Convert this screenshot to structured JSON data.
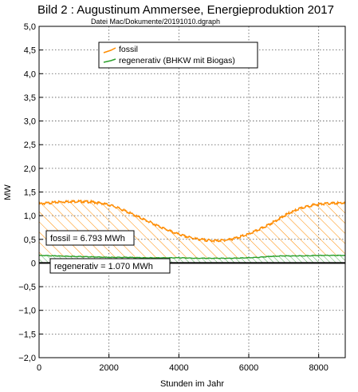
{
  "chart_data": {
    "type": "area",
    "title": "Bild 2 : Augustinum Ammersee, Energieproduktion 2017",
    "subtitle": "Datei Mac/Dokumente/20191010.dgraph",
    "xlabel": "Stunden im Jahr",
    "ylabel": "MW",
    "xlim": [
      0,
      8760
    ],
    "ylim": [
      -2.0,
      5.0
    ],
    "x_ticks": [
      0,
      2000,
      4000,
      6000,
      8000
    ],
    "x_tick_labels": [
      "0",
      "2000",
      "4000",
      "6000",
      "8000"
    ],
    "y_ticks": [
      -2.0,
      -1.5,
      -1.0,
      -0.5,
      0,
      0.5,
      1.0,
      1.5,
      2.0,
      2.5,
      3.0,
      3.5,
      4.0,
      4.5,
      5.0
    ],
    "y_tick_labels": [
      "−2,0",
      "−1,5",
      "−1,0",
      "−0,5",
      "0",
      "0,5",
      "1,0",
      "1,5",
      "2,0",
      "2,5",
      "3,0",
      "3,5",
      "4,0",
      "4,5",
      "5,0"
    ],
    "grid": true,
    "legend_position": "top",
    "series": [
      {
        "name": "fossil",
        "color": "#ff8c00",
        "x": [
          0,
          300,
          600,
          900,
          1200,
          1500,
          1800,
          2100,
          2400,
          2700,
          3000,
          3300,
          3600,
          3900,
          4200,
          4500,
          4800,
          5100,
          5400,
          5700,
          6000,
          6300,
          6600,
          6900,
          7200,
          7500,
          7800,
          8100,
          8400,
          8760
        ],
        "values": [
          1.25,
          1.27,
          1.29,
          1.3,
          1.3,
          1.29,
          1.26,
          1.21,
          1.12,
          1.02,
          0.92,
          0.82,
          0.72,
          0.63,
          0.56,
          0.51,
          0.48,
          0.47,
          0.49,
          0.54,
          0.61,
          0.71,
          0.82,
          0.95,
          1.07,
          1.16,
          1.22,
          1.25,
          1.26,
          1.27
        ]
      },
      {
        "name": "regenerativ (BHKW mit Biogas)",
        "color": "#2ca02c",
        "x": [
          0,
          500,
          1000,
          1500,
          2000,
          2500,
          3000,
          3500,
          4000,
          4500,
          5000,
          5500,
          6000,
          6300,
          6600,
          7000,
          7500,
          8000,
          8760
        ],
        "values": [
          0.16,
          0.15,
          0.14,
          0.13,
          0.12,
          0.12,
          0.11,
          0.11,
          0.11,
          0.1,
          0.1,
          0.1,
          0.11,
          0.12,
          0.14,
          0.15,
          0.15,
          0.16,
          0.16
        ]
      }
    ],
    "annotations": [
      {
        "text": "fossil = 6.793 MWh",
        "x": 260,
        "y": 0.53
      },
      {
        "text": "regenerativ = 1.070 MWh",
        "x": 400,
        "y": -0.07
      }
    ]
  }
}
